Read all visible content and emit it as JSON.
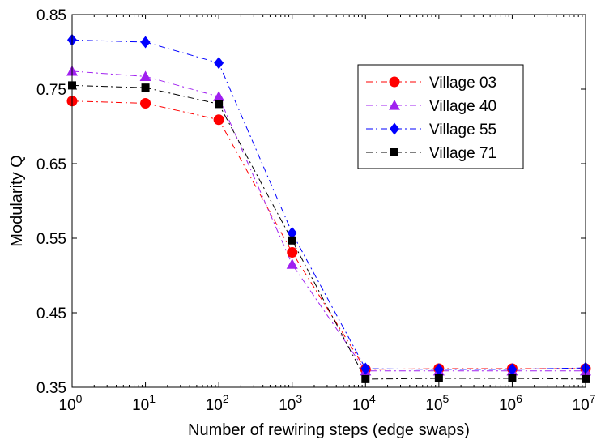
{
  "chart_data": {
    "type": "line",
    "title": "",
    "xlabel": "Number of rewiring steps (edge swaps)",
    "ylabel": "Modularity Q",
    "xscale": "log",
    "x": [
      1,
      10,
      100,
      1000,
      10000,
      100000,
      1000000,
      10000000
    ],
    "x_ticks": [
      {
        "base": "10",
        "exp": "0"
      },
      {
        "base": "10",
        "exp": "1"
      },
      {
        "base": "10",
        "exp": "2"
      },
      {
        "base": "10",
        "exp": "3"
      },
      {
        "base": "10",
        "exp": "4"
      },
      {
        "base": "10",
        "exp": "5"
      },
      {
        "base": "10",
        "exp": "6"
      },
      {
        "base": "10",
        "exp": "7"
      }
    ],
    "y_ticks": [
      "0.35",
      "0.45",
      "0.55",
      "0.65",
      "0.75",
      "0.85"
    ],
    "ylim": [
      0.35,
      0.85
    ],
    "xlim": [
      1,
      10000000
    ],
    "grid": false,
    "legend_position": "top-right",
    "series": [
      {
        "name": "Village 03",
        "color": "#ff0000",
        "marker": "circle",
        "values": [
          0.734,
          0.731,
          0.709,
          0.531,
          0.374,
          0.375,
          0.375,
          0.375
        ]
      },
      {
        "name": "Village 40",
        "color": "#a020f0",
        "marker": "triangle",
        "values": [
          0.774,
          0.767,
          0.74,
          0.515,
          0.372,
          0.372,
          0.372,
          0.372
        ]
      },
      {
        "name": "Village 55",
        "color": "#0000ff",
        "marker": "diamond",
        "values": [
          0.816,
          0.813,
          0.785,
          0.557,
          0.375,
          0.374,
          0.374,
          0.376
        ]
      },
      {
        "name": "Village 71",
        "color": "#000000",
        "marker": "square",
        "values": [
          0.755,
          0.752,
          0.73,
          0.547,
          0.361,
          0.362,
          0.362,
          0.361
        ]
      }
    ]
  }
}
